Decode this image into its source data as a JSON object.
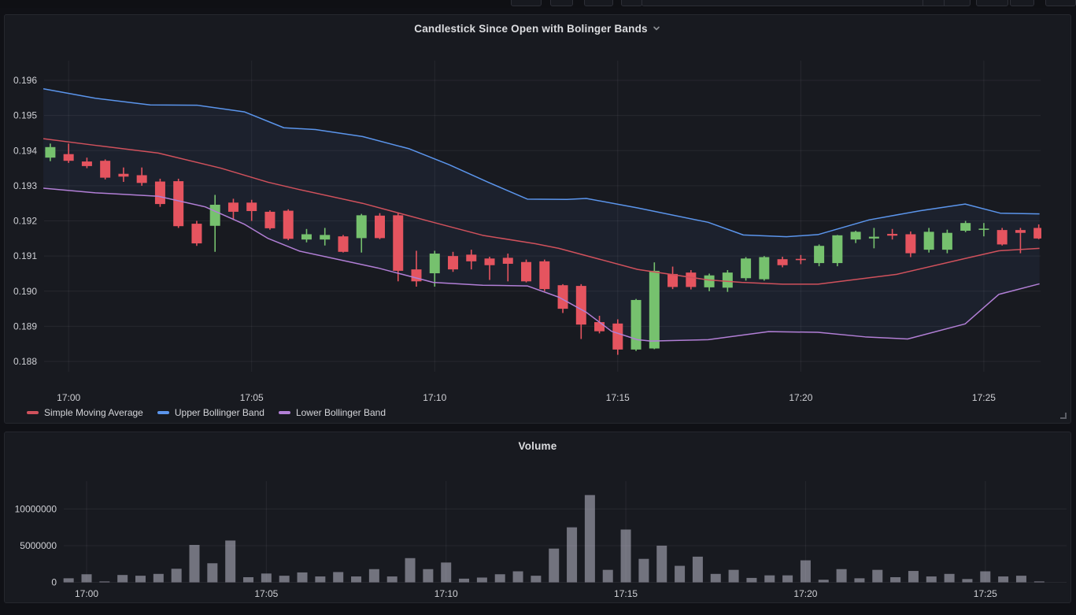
{
  "panels": {
    "candlestick": {
      "title": "Candlestick Since Open with Bolinger Bands"
    },
    "volume": {
      "title": "Volume"
    }
  },
  "colors": {
    "panel_bg": "#181a20",
    "page_bg": "#101116",
    "grid": "rgba(204,204,220,0.08)",
    "axis_text": "#cfd0d5",
    "band_fill": "rgba(110,159,255,0.06)"
  },
  "chart_data": [
    {
      "type": "candlestick",
      "title": "Candlestick Since Open with Bolinger Bands",
      "x_unit": "minutes_after_17:00",
      "xlim": [
        -0.67,
        26.55
      ],
      "ylim": [
        0.18771,
        0.19656
      ],
      "grid": true,
      "legend_position": "bottom-left",
      "x_ticks": [
        [
          0,
          "17:00"
        ],
        [
          5,
          "17:05"
        ],
        [
          10,
          "17:10"
        ],
        [
          15,
          "17:15"
        ],
        [
          20,
          "17:20"
        ],
        [
          25,
          "17:25"
        ]
      ],
      "y_ticks": [
        [
          0.188,
          "0.188"
        ],
        [
          0.189,
          "0.189"
        ],
        [
          0.19,
          "0.190"
        ],
        [
          0.191,
          "0.191"
        ],
        [
          0.192,
          "0.192"
        ],
        [
          0.193,
          "0.193"
        ],
        [
          0.194,
          "0.194"
        ],
        [
          0.195,
          "0.195"
        ],
        [
          0.196,
          "0.196"
        ]
      ],
      "candle_colors": {
        "up": "#76c16e",
        "down": "#e5545f"
      },
      "candle_columns": [
        "t",
        "open",
        "high",
        "low",
        "close"
      ],
      "candles": [
        [
          -0.5,
          0.1938,
          0.1942,
          0.1937,
          0.1941
        ],
        [
          0,
          0.1939,
          0.1942,
          0.19365,
          0.19371
        ],
        [
          0.5,
          0.19369,
          0.1938,
          0.1935,
          0.19356
        ],
        [
          1,
          0.19371,
          0.19375,
          0.19318,
          0.19323
        ],
        [
          1.5,
          0.19334,
          0.19352,
          0.19311,
          0.19326
        ],
        [
          2,
          0.1933,
          0.19352,
          0.193,
          0.19308
        ],
        [
          2.5,
          0.19312,
          0.1932,
          0.1924,
          0.19248
        ],
        [
          3,
          0.19313,
          0.1932,
          0.1918,
          0.19185
        ],
        [
          3.5,
          0.19192,
          0.192,
          0.19129,
          0.19136
        ],
        [
          4,
          0.19186,
          0.19274,
          0.19112,
          0.19246
        ],
        [
          4.5,
          0.19252,
          0.19263,
          0.19203,
          0.19226
        ],
        [
          5,
          0.19252,
          0.1926,
          0.192,
          0.19228
        ],
        [
          5.5,
          0.19226,
          0.1923,
          0.19175,
          0.19179
        ],
        [
          6,
          0.19229,
          0.19233,
          0.19145,
          0.19149
        ],
        [
          6.5,
          0.19147,
          0.19177,
          0.19139,
          0.19162
        ],
        [
          7,
          0.19147,
          0.1918,
          0.1913,
          0.1916
        ],
        [
          7.5,
          0.19156,
          0.1916,
          0.1911,
          0.19112
        ],
        [
          8,
          0.19151,
          0.1922,
          0.1911,
          0.19216
        ],
        [
          8.5,
          0.19215,
          0.19222,
          0.19148,
          0.19151
        ],
        [
          9,
          0.19216,
          0.19222,
          0.19028,
          0.19058
        ],
        [
          9.5,
          0.19062,
          0.19115,
          0.19013,
          0.19028
        ],
        [
          10,
          0.19051,
          0.19115,
          0.19013,
          0.19107
        ],
        [
          10.5,
          0.191,
          0.19112,
          0.19055,
          0.19062
        ],
        [
          11,
          0.19104,
          0.19118,
          0.19062,
          0.19085
        ],
        [
          11.5,
          0.19093,
          0.19098,
          0.19032,
          0.19074
        ],
        [
          12,
          0.19095,
          0.19107,
          0.19028,
          0.19078
        ],
        [
          12.5,
          0.19083,
          0.1909,
          0.19025,
          0.19028
        ],
        [
          13,
          0.19085,
          0.1909,
          0.19,
          0.19006
        ],
        [
          13.5,
          0.19017,
          0.1902,
          0.18938,
          0.1895
        ],
        [
          14,
          0.19015,
          0.1902,
          0.18864,
          0.18905
        ],
        [
          14.5,
          0.18912,
          0.1893,
          0.1888,
          0.18886
        ],
        [
          15,
          0.18908,
          0.1892,
          0.18819,
          0.18834
        ],
        [
          15.5,
          0.18834,
          0.18978,
          0.1883,
          0.18975
        ],
        [
          16,
          0.18837,
          0.19082,
          0.18835,
          0.19058
        ],
        [
          16.5,
          0.19049,
          0.1907,
          0.19006,
          0.19012
        ],
        [
          17,
          0.19053,
          0.1906,
          0.19005,
          0.19012
        ],
        [
          17.5,
          0.19011,
          0.1905,
          0.19,
          0.19045
        ],
        [
          18,
          0.1901,
          0.1906,
          0.18998,
          0.19053
        ],
        [
          18.5,
          0.19037,
          0.19097,
          0.1903,
          0.19093
        ],
        [
          19,
          0.19034,
          0.191,
          0.1903,
          0.19097
        ],
        [
          19.5,
          0.19091,
          0.19098,
          0.19068,
          0.19074
        ],
        [
          20,
          0.19092,
          0.19103,
          0.19077,
          0.1909
        ],
        [
          20.5,
          0.1908,
          0.19133,
          0.19071,
          0.19129
        ],
        [
          21,
          0.1908,
          0.1916,
          0.19071,
          0.19159
        ],
        [
          21.5,
          0.19147,
          0.19172,
          0.19137,
          0.19169
        ],
        [
          22,
          0.1915,
          0.1918,
          0.19122,
          0.19155
        ],
        [
          22.5,
          0.19163,
          0.19177,
          0.19147,
          0.19158
        ],
        [
          23,
          0.19162,
          0.1917,
          0.19097,
          0.19108
        ],
        [
          23.5,
          0.19118,
          0.1918,
          0.1911,
          0.19169
        ],
        [
          24,
          0.19118,
          0.19175,
          0.19108,
          0.19166
        ],
        [
          24.5,
          0.19172,
          0.192,
          0.19168,
          0.19194
        ],
        [
          25,
          0.19175,
          0.19194,
          0.19156,
          0.19178
        ],
        [
          25.5,
          0.19174,
          0.1918,
          0.1913,
          0.19133
        ],
        [
          26,
          0.19174,
          0.1918,
          0.19108,
          0.19166
        ],
        [
          26.5,
          0.1918,
          0.1919,
          0.19148,
          0.1915
        ]
      ],
      "series": [
        {
          "name": "Simple Moving Average",
          "color": "#d0515c",
          "points": [
            [
              -0.69,
              0.19434
            ],
            [
              0.73,
              0.19415
            ],
            [
              2.45,
              0.19393
            ],
            [
              4.16,
              0.1935
            ],
            [
              5.45,
              0.1931
            ],
            [
              6.31,
              0.19289
            ],
            [
              8.03,
              0.1925
            ],
            [
              9.96,
              0.19196
            ],
            [
              11.31,
              0.19159
            ],
            [
              12.75,
              0.19135
            ],
            [
              13.39,
              0.19122
            ],
            [
              15.54,
              0.19062
            ],
            [
              17.47,
              0.19032
            ],
            [
              18.39,
              0.19025
            ],
            [
              19.51,
              0.1902
            ],
            [
              20.47,
              0.1902
            ],
            [
              22.62,
              0.19048
            ],
            [
              24.49,
              0.19093
            ],
            [
              25.41,
              0.19115
            ],
            [
              26.52,
              0.19122
            ]
          ]
        },
        {
          "name": "Upper Bollinger Band",
          "color": "#5b95ec",
          "points": [
            [
              -0.69,
              0.19576
            ],
            [
              0.73,
              0.19549
            ],
            [
              2.23,
              0.1953
            ],
            [
              3.52,
              0.19529
            ],
            [
              4.81,
              0.1951
            ],
            [
              5.88,
              0.19465
            ],
            [
              6.74,
              0.1946
            ],
            [
              8.03,
              0.1944
            ],
            [
              9.31,
              0.19405
            ],
            [
              10.39,
              0.1936
            ],
            [
              11.46,
              0.1931
            ],
            [
              12.53,
              0.19262
            ],
            [
              13.61,
              0.19261
            ],
            [
              14.14,
              0.19264
            ],
            [
              15.54,
              0.19237
            ],
            [
              17.47,
              0.19196
            ],
            [
              18.43,
              0.1916
            ],
            [
              19.61,
              0.19155
            ],
            [
              20.47,
              0.19161
            ],
            [
              21.87,
              0.19203
            ],
            [
              23.26,
              0.19229
            ],
            [
              24.49,
              0.19248
            ],
            [
              25.45,
              0.19222
            ],
            [
              26.52,
              0.1922
            ]
          ]
        },
        {
          "name": "Lower Bollinger Band",
          "color": "#b27fd6",
          "points": [
            [
              -0.69,
              0.19293
            ],
            [
              0.73,
              0.1928
            ],
            [
              2.45,
              0.1927
            ],
            [
              3.73,
              0.1924
            ],
            [
              4.81,
              0.1919
            ],
            [
              5.45,
              0.1915
            ],
            [
              6.31,
              0.19114
            ],
            [
              8.45,
              0.19066
            ],
            [
              9.96,
              0.19025
            ],
            [
              11.31,
              0.19017
            ],
            [
              12.53,
              0.19015
            ],
            [
              13.39,
              0.18983
            ],
            [
              14.14,
              0.1894
            ],
            [
              14.83,
              0.18886
            ],
            [
              15.54,
              0.18862
            ],
            [
              15.9,
              0.18858
            ],
            [
              17.47,
              0.18862
            ],
            [
              19.12,
              0.18885
            ],
            [
              20.47,
              0.18883
            ],
            [
              21.76,
              0.1887
            ],
            [
              22.92,
              0.18864
            ],
            [
              24.49,
              0.18907
            ],
            [
              25.41,
              0.18991
            ],
            [
              26.52,
              0.19021
            ]
          ]
        }
      ]
    },
    {
      "type": "bar",
      "title": "Volume",
      "x_unit": "minutes_after_17:00",
      "xlim": [
        -0.635,
        27.26
      ],
      "ylim": [
        0,
        13800000
      ],
      "grid": true,
      "bar_color": "rgba(204,204,220,0.5)",
      "x_ticks": [
        [
          0,
          "17:00"
        ],
        [
          5,
          "17:05"
        ],
        [
          10,
          "17:10"
        ],
        [
          15,
          "17:15"
        ],
        [
          20,
          "17:20"
        ],
        [
          25,
          "17:25"
        ]
      ],
      "y_ticks": [
        [
          0,
          "0"
        ],
        [
          5000000,
          "5000000"
        ],
        [
          10000000,
          "10000000"
        ]
      ],
      "bars": {
        "t_start": -0.5,
        "t_step": 0.5,
        "values": [
          550000,
          1100000,
          120000,
          1000000,
          900000,
          1150000,
          1850000,
          5100000,
          2600000,
          5700000,
          700000,
          1200000,
          900000,
          1350000,
          800000,
          1400000,
          800000,
          1800000,
          800000,
          3300000,
          1800000,
          2700000,
          500000,
          650000,
          1100000,
          1500000,
          900000,
          4600000,
          7500000,
          11900000,
          1700000,
          7200000,
          3200000,
          5000000,
          2250000,
          3500000,
          1150000,
          1700000,
          600000,
          950000,
          950000,
          3000000,
          350000,
          1800000,
          550000,
          1700000,
          700000,
          1550000,
          800000,
          1150000,
          450000,
          1500000,
          800000,
          900000,
          120000
        ]
      }
    }
  ]
}
